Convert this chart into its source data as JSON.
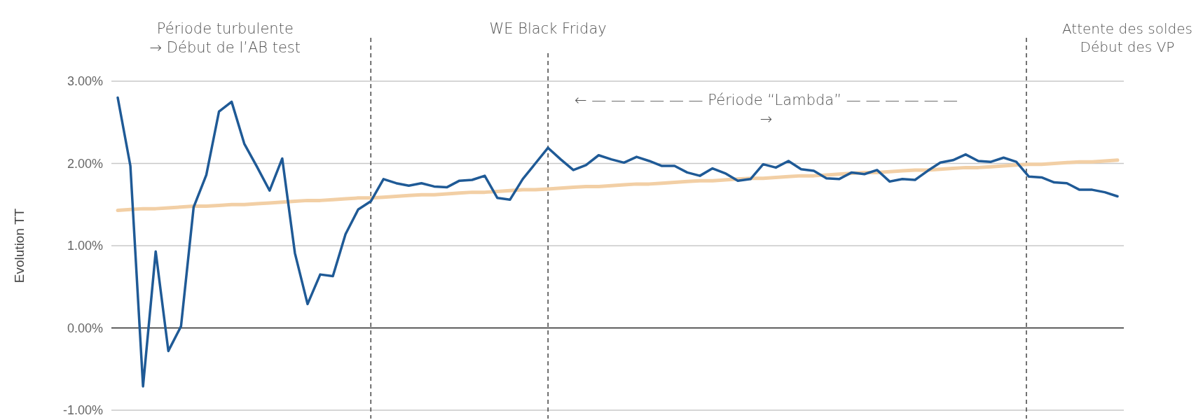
{
  "chart_data": {
    "type": "line",
    "ylabel": "Evolution TT",
    "categories": [
      null,
      null,
      null,
      null,
      null,
      null,
      null,
      null,
      null,
      null,
      null,
      null,
      null,
      null,
      null,
      null,
      null,
      null,
      null,
      null,
      null,
      null,
      null,
      null,
      null,
      null,
      null,
      null,
      null,
      null,
      null,
      null,
      null,
      null,
      null,
      null,
      null,
      null,
      null,
      null,
      null,
      null,
      null,
      null,
      null,
      null,
      null,
      null,
      null,
      null,
      null,
      null,
      null,
      null,
      null,
      null,
      null,
      null,
      null,
      null,
      null,
      null,
      null,
      null,
      null,
      null,
      null,
      null,
      null,
      null,
      null,
      null,
      null,
      null,
      null,
      null,
      null,
      null,
      null,
      null
    ],
    "ylim": [
      -1,
      3
    ],
    "yticks": [
      {
        "value": -1,
        "label": "-1.00%"
      },
      {
        "value": 0,
        "label": "0.00%"
      },
      {
        "value": 1,
        "label": "1.00%"
      },
      {
        "value": 2,
        "label": "2.00%"
      },
      {
        "value": 3,
        "label": "3.00%"
      }
    ],
    "tick_labels": "y",
    "grid": "y",
    "marker": "none",
    "line_style": "solid",
    "series": [
      {
        "color": "#1f5a96",
        "values": [
          2.8,
          1.97,
          -0.71,
          0.93,
          -0.28,
          0.02,
          1.47,
          1.86,
          2.63,
          2.75,
          2.24,
          1.96,
          1.67,
          2.06,
          0.91,
          0.29,
          0.65,
          0.63,
          1.14,
          1.44,
          1.54,
          1.81,
          1.76,
          1.73,
          1.76,
          1.72,
          1.71,
          1.79,
          1.8,
          1.85,
          1.58,
          1.56,
          1.81,
          2.0,
          2.19,
          2.05,
          1.92,
          1.98,
          2.1,
          2.05,
          2.01,
          2.08,
          2.03,
          1.97,
          1.97,
          1.89,
          1.85,
          1.94,
          1.88,
          1.79,
          1.81,
          1.99,
          1.95,
          2.03,
          1.93,
          1.91,
          1.82,
          1.81,
          1.89,
          1.87,
          1.92,
          1.78,
          1.81,
          1.8,
          1.91,
          2.01,
          2.04,
          2.11,
          2.03,
          2.02,
          2.07,
          2.02,
          1.84,
          1.83,
          1.77,
          1.76,
          1.68,
          1.68,
          1.65,
          1.6
        ]
      },
      {
        "type": "line",
        "color": "#f2cfa5",
        "values": [
          1.43,
          1.44,
          1.45,
          1.45,
          1.46,
          1.47,
          1.48,
          1.48,
          1.49,
          1.5,
          1.5,
          1.51,
          1.52,
          1.53,
          1.54,
          1.55,
          1.55,
          1.56,
          1.57,
          1.58,
          1.58,
          1.59,
          1.6,
          1.61,
          1.62,
          1.62,
          1.63,
          1.64,
          1.65,
          1.65,
          1.66,
          1.67,
          1.68,
          1.68,
          1.69,
          1.7,
          1.71,
          1.72,
          1.72,
          1.73,
          1.74,
          1.75,
          1.75,
          1.76,
          1.77,
          1.78,
          1.79,
          1.79,
          1.8,
          1.81,
          1.82,
          1.82,
          1.83,
          1.84,
          1.85,
          1.85,
          1.86,
          1.87,
          1.88,
          1.89,
          1.89,
          1.9,
          1.91,
          1.92,
          1.92,
          1.93,
          1.94,
          1.95,
          1.95,
          1.96,
          1.97,
          1.98,
          1.99,
          1.99,
          2.0,
          2.01,
          2.02,
          2.02,
          2.03,
          2.04
        ]
      }
    ],
    "annotations": [
      "Période turbulente\n→ Début de l’AB test",
      "WE Black Friday",
      "← — — — — — — Période “Lambda” — — — — — —\n→",
      "Attente des soldes\nDébut des VP"
    ]
  }
}
